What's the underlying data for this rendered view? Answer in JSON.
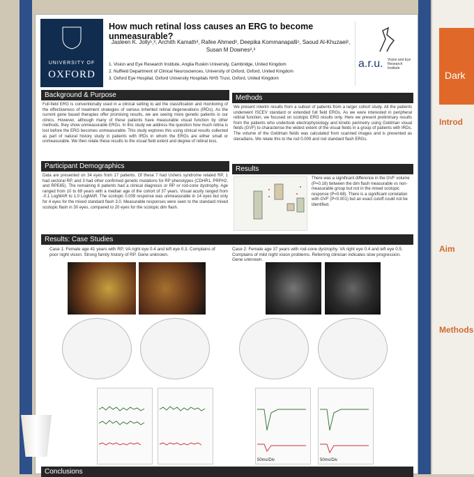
{
  "header": {
    "university_line1": "UNIVERSITY OF",
    "university_line2": "OXFORD",
    "title": "How much retinal loss causes an ERG to become unmeasurable?",
    "authors": "Jasleen K. Jolly¹,³, Archith Kamath³, Rafee Ahmed², Deepika Kommanapalli¹, Saoud Al-Khuzaei², Susan M Downes²,³",
    "affiliations": [
      "1.  Vision and Eye Research Institute, Anglia Ruskin University, Cambridge, United Kingdom",
      "2.  Nuffield Department of Clinical Neurosciences, University of Oxford, Oxford, United Kingdom",
      "3.  Oxford Eye Hospital, Oxford University Hospitals NHS Trust, Oxford, United Kingdom"
    ],
    "aru": "a.r.u.",
    "aru_sub": "Vision and Eye Research Institute"
  },
  "sections": {
    "background": {
      "heading": "Background & Purpose",
      "text": "Full-field ERG is conventionally used in a clinical setting to aid the classification and monitoring of the effectiveness of treatment strategies of various inherited retinal degenerations (IRDs). As the current gene based therapies offer promising results, we are seeing more genetic patients in our clinics. However, although many of these patients have measurable visual function by other methods, they show unmeasurable ERGs. In this study we address the question how much retina is lost before the ERG becomes unmeasurable. This study explores this using clinical results collected as part of natural history study in patients with IRDs in whom the ERGs are either small or unmeasurable. We then relate these results to the visual field extent and degree of retinal loss."
    },
    "methods": {
      "heading": "Methods",
      "text": "We present interim results from a subset of patients from a larger cohort study. All the patients underwent ISCEV standard or extended full field ERGs. As we were interested in peripheral retinal function, we focused on scotopic ERG results only. Here we present preliminary results from the patients who undertook electrophysiology and kinetic perimetry using Goldman visual fields (GVF) to characterise the widest extent of the visual fields in a group of patients with IRDs. The volume of the Goldman fields was calculated from scanned images and is presented as steradians. We relate this to the rod 0.009 and rod standard flash ERGs."
    },
    "demographics": {
      "heading": "Participant Demographics",
      "text": "Data are presented on 34 eyes from 17 patients. Of these 7 had Ushers syndrome related RP, 1 had sectoral RP, and 3 had other confirmed genetic mutations for RP phenotypes (CDHR1, PRPH2, and RPE65). The remaining 6 patients had a clinical diagnosis or RP or rod-cone dystrophy. Age ranged from 10 to 69 years with a median age of the cohort of 37 years. Visual acuity ranged from -0.1 LogMAR to 1.0 LogMAR. The scotopic 0.009 response was unmeasurable in 14 eyes but only for 4 eyes for the mixed standard flash 3.0. Measurable responses were seen to the standard mixed scotopic flash in 30 eyes, compared to 20 eyes for the scotopic dim flash."
    },
    "results": {
      "heading": "Results",
      "text": "There was a significant difference in the GVF volume (P=0.16) between the dim flash measurable vs non-measurable group but not in the mixed scotopic response (P=0.68). There is a significant correlation with GVF (P<0.001) but an exact cutoff could not be identified."
    },
    "case_studies": {
      "heading": "Results: Case Studies",
      "case1": "Case 1: Female age 41 years with RP, VA right eye 0.4 and left eye 0.3. Complains of poor night vision. Strong family history of RP. Gene unknown.",
      "case2": "Case 2: Female age 37 years with rod-cone dystrophy. VA right eye 0.4 and left eye 0.5. Complains of mild night vision problems. Referring clinician indicates slow progression. Gene unknown.",
      "erg_scale": [
        "50ms/Div",
        "50ms/Div"
      ]
    },
    "conclusions": {
      "heading": "Conclusions"
    }
  },
  "neighbour_poster": {
    "header": "Dark",
    "headings": [
      "Introd",
      "Aim",
      "Methods"
    ]
  }
}
